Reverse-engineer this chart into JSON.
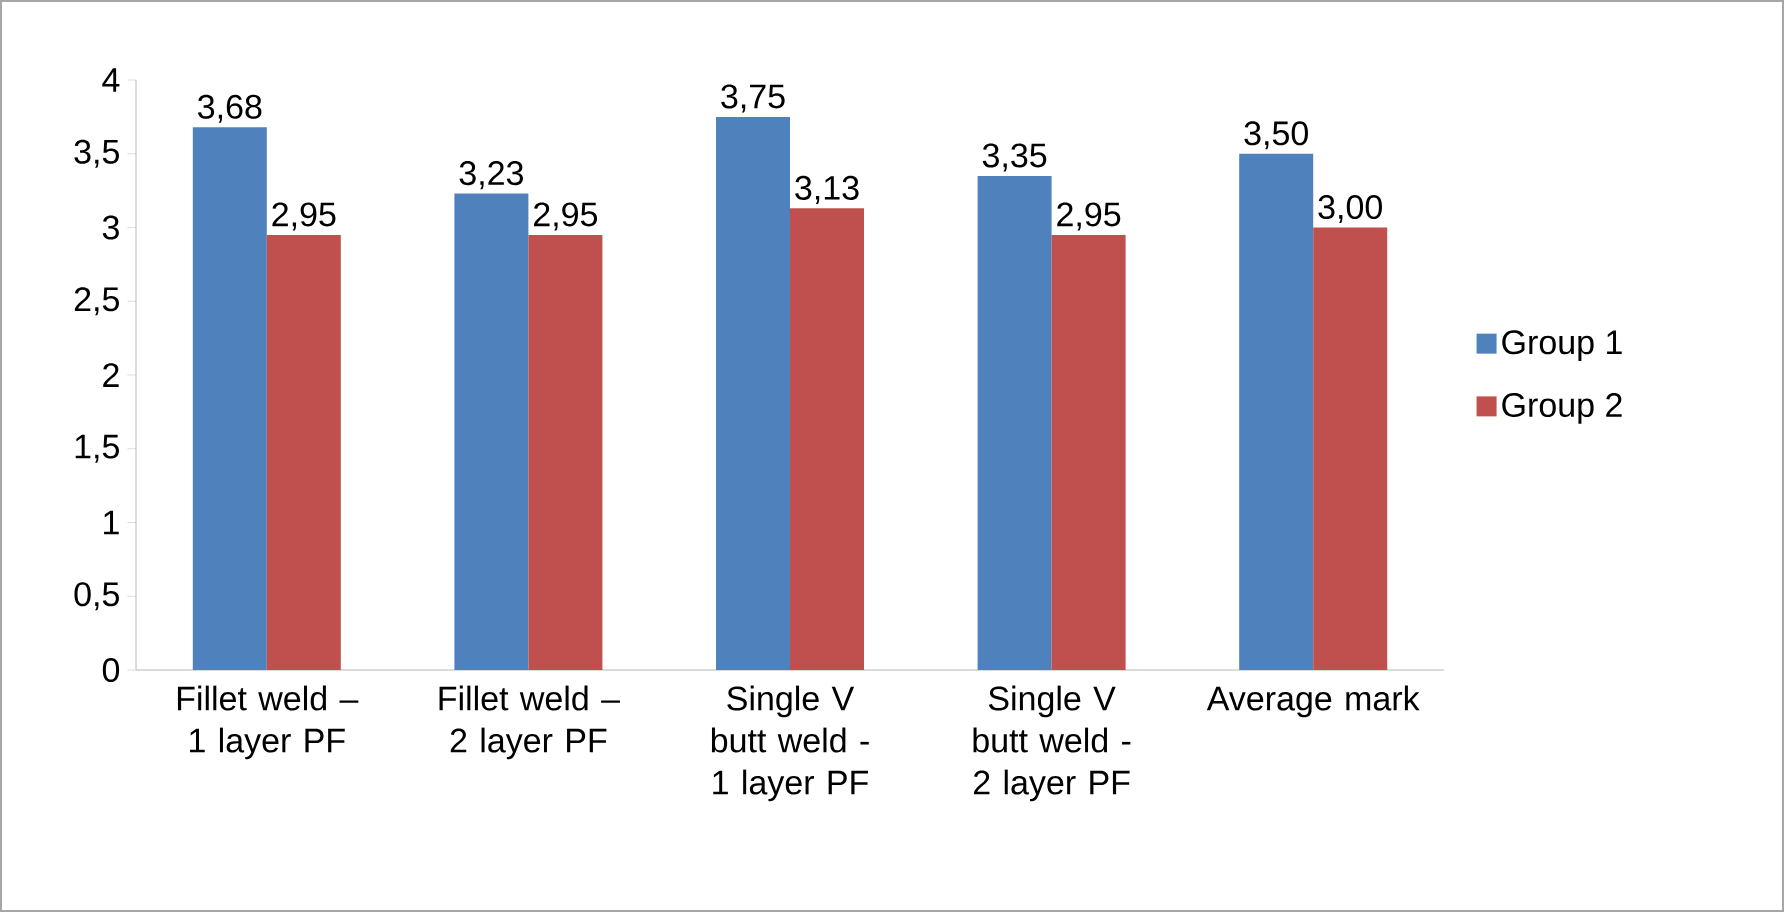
{
  "chart_data": {
    "type": "bar",
    "categories": [
      "Fillet weld – 1 layer PF",
      "Fillet weld – 2 layer PF",
      "Single V butt weld - 1 layer PF",
      "Single V butt weld - 2 layer PF",
      "Average mark"
    ],
    "series": [
      {
        "name": "Group 1",
        "color": "#4f81bd",
        "values": [
          3.68,
          3.23,
          3.75,
          3.35,
          3.5
        ],
        "value_labels": [
          "3,68",
          "3,23",
          "3,75",
          "3,35",
          "3,50"
        ]
      },
      {
        "name": "Group 2",
        "color": "#c0504d",
        "values": [
          2.95,
          2.95,
          3.13,
          2.95,
          3.0
        ],
        "value_labels": [
          "2,95",
          "2,95",
          "3,13",
          "2,95",
          "3,00"
        ]
      }
    ],
    "ylim": [
      0,
      4
    ],
    "yticks": [
      0,
      {
        "value": 0.5,
        "label": "0,5"
      },
      1,
      {
        "value": 1.5,
        "label": "1,5"
      },
      2,
      {
        "value": 2.5,
        "label": "2,5"
      },
      3,
      {
        "value": 3.5,
        "label": "3,5"
      },
      4
    ],
    "legend": "right"
  }
}
